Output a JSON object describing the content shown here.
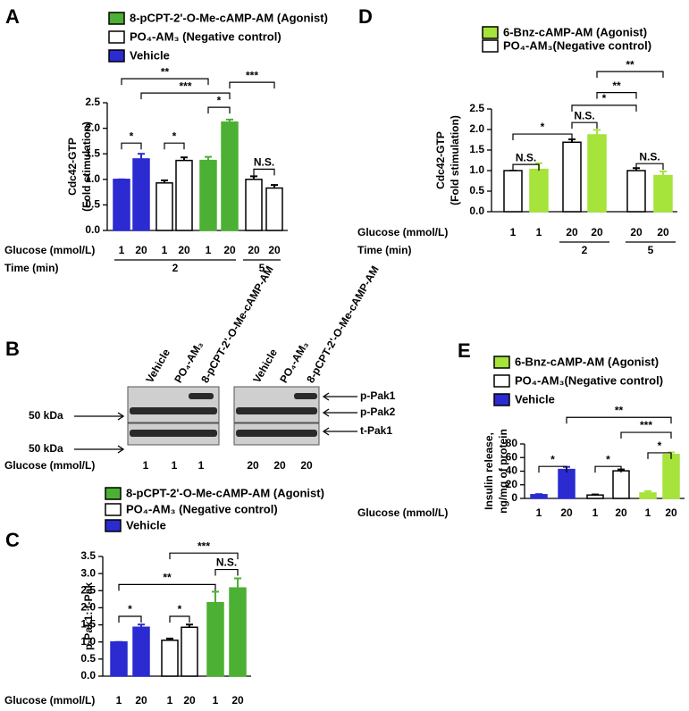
{
  "chart_data": [
    {
      "type": "bar",
      "panel": "A",
      "ylabel": [
        "Cdc42-GTP",
        "(Fold stimulation)"
      ],
      "xlabel": "Glucose (mmol/L)",
      "categories": [
        "1",
        "20",
        "1",
        "20",
        "1",
        "20",
        "20",
        "20"
      ],
      "series": [
        {
          "name": "8-pCPT-2'-O-Me-cAMP-AM (Agonist)",
          "color": "#4cb034",
          "values": [
            null,
            null,
            null,
            null,
            1.37,
            2.12,
            null,
            null
          ],
          "errors": [
            null,
            null,
            null,
            null,
            0.07,
            0.05,
            null,
            null
          ]
        },
        {
          "name": "PO₄-AM₃ (Negative control)",
          "color": "#ffffff",
          "values": [
            null,
            null,
            0.93,
            1.37,
            null,
            null,
            1.0,
            0.83
          ],
          "errors": [
            null,
            null,
            0.05,
            0.06,
            null,
            null,
            0.06,
            0.06
          ]
        },
        {
          "name": "Vehicle",
          "color": "#2b2bd1",
          "values": [
            1.0,
            1.4,
            null,
            null,
            null,
            null,
            null,
            null
          ],
          "errors": [
            0,
            0.1,
            null,
            null,
            null,
            null,
            null,
            null
          ]
        }
      ],
      "ylim": [
        0,
        2.5
      ],
      "yticks": [
        {
          "value": 0,
          "label": "0.0"
        },
        0.5,
        {
          "value": 1,
          "label": "1.0"
        },
        1.5,
        {
          "value": 2,
          "label": "2.0"
        },
        2.5
      ],
      "annotations": [
        "**",
        "***",
        "***",
        "*",
        "*",
        "*",
        "N.S."
      ],
      "time_label": "Time (min)",
      "time_groups": [
        "2",
        "5"
      ]
    },
    {
      "type": "bar",
      "panel": "C",
      "ylabel": [
        "p-Pak1: t-Pak"
      ],
      "xlabel": "Glucose (mmol/L)",
      "categories": [
        "1",
        "20",
        "1",
        "20",
        "1",
        "20"
      ],
      "series": [
        {
          "name": "8-pCPT-2'-O-Me-cAMP-AM  (Agonist)",
          "color": "#4cb034",
          "values": [
            null,
            null,
            null,
            null,
            2.15,
            2.58
          ],
          "errors": [
            null,
            null,
            null,
            null,
            0.32,
            0.28
          ]
        },
        {
          "name": "PO₄-AM₃ (Negative control)",
          "color": "#ffffff",
          "values": [
            null,
            null,
            1.05,
            1.43,
            null,
            null
          ],
          "errors": [
            null,
            null,
            0.05,
            0.08,
            null,
            null
          ]
        },
        {
          "name": "Vehicle",
          "color": "#2b2bd1",
          "values": [
            1.0,
            1.43,
            null,
            null,
            null,
            null
          ],
          "errors": [
            0,
            0.08,
            null,
            null,
            null,
            null
          ]
        }
      ],
      "ylim": [
        0,
        3.5
      ],
      "yticks": [
        {
          "value": 0,
          "label": "0.0"
        },
        0.5,
        {
          "value": 1,
          "label": "1.0"
        },
        1.5,
        {
          "value": 2,
          "label": "2.0"
        },
        2.5,
        {
          "value": 3,
          "label": "3.0"
        },
        3.5
      ],
      "annotations": [
        "***",
        "**",
        "N.S.",
        "*",
        "*"
      ]
    },
    {
      "type": "bar",
      "panel": "D",
      "ylabel": [
        "Cdc42-GTP",
        "(Fold stimulation)"
      ],
      "xlabel": "Glucose (mmol/L)",
      "categories": [
        "1",
        "1",
        "20",
        "20",
        "20",
        "20"
      ],
      "series": [
        {
          "name": "6-Bnz-cAMP-AM (Agonist)",
          "color": "#a6e33b",
          "values": [
            null,
            1.03,
            null,
            1.87,
            null,
            0.88
          ],
          "errors": [
            null,
            0.15,
            null,
            0.12,
            null,
            0.1
          ]
        },
        {
          "name": "PO₄-AM₃(Negative control)",
          "color": "#ffffff",
          "values": [
            1.0,
            null,
            1.69,
            null,
            1.0,
            null
          ],
          "errors": [
            0,
            null,
            0.07,
            null,
            0.06,
            null
          ]
        }
      ],
      "ylim": [
        0,
        2.5
      ],
      "yticks": [
        {
          "value": 0,
          "label": "0.0"
        },
        0.5,
        {
          "value": 1,
          "label": "1.0"
        },
        1.5,
        {
          "value": 2,
          "label": "2.0"
        },
        2.5
      ],
      "annotations": [
        "**",
        "**",
        "*",
        "N.S.",
        "*",
        "N.S.",
        "N.S."
      ],
      "time_label": "Time (min)",
      "time_groups": [
        "2",
        "5"
      ]
    },
    {
      "type": "bar",
      "panel": "E",
      "ylabel": [
        "Insulin release,",
        "ng/mg of protein"
      ],
      "xlabel": "Glucose (mmol/L)",
      "categories": [
        "1",
        "20",
        "1",
        "20",
        "1",
        "20"
      ],
      "series": [
        {
          "name": "6-Bnz-cAMP-AM (Agonist)",
          "color": "#a6e33b",
          "values": [
            null,
            null,
            null,
            null,
            8,
            64.5
          ],
          "errors": [
            null,
            null,
            null,
            null,
            2.5,
            3
          ]
        },
        {
          "name": "PO₄-AM₃(Negative control)",
          "color": "#ffffff",
          "values": [
            null,
            null,
            5,
            40.5,
            null,
            null
          ],
          "errors": [
            null,
            null,
            0.8,
            2,
            null,
            null
          ]
        },
        {
          "name": "Vehicle",
          "color": "#2b2bd1",
          "values": [
            5.5,
            42.5,
            null,
            null,
            null,
            null
          ],
          "errors": [
            0.8,
            3.8,
            null,
            null,
            null,
            null
          ]
        }
      ],
      "ylim": [
        0,
        80
      ],
      "yticks": [
        0,
        20,
        40,
        60,
        80
      ],
      "annotations": [
        "**",
        "***",
        "*",
        "*",
        "*"
      ]
    }
  ],
  "blot": {
    "panel": "B",
    "lanes": [
      "Vehicle",
      "PO₄-AM₃",
      "8-pCPT-2'-O-Me-cAMP-AM",
      "Vehicle",
      "PO₄-AM₃",
      "8-pCPT-2'-O-Me-cAMP-AM"
    ],
    "bands": [
      "p-Pak1",
      "p-Pak2",
      "t-Pak1"
    ],
    "markers": [
      "50 kDa",
      "50 kDa"
    ],
    "glucose_label": "Glucose (mmol/L)",
    "glucose": [
      "1",
      "1",
      "1",
      "20",
      "20",
      "20"
    ]
  }
}
